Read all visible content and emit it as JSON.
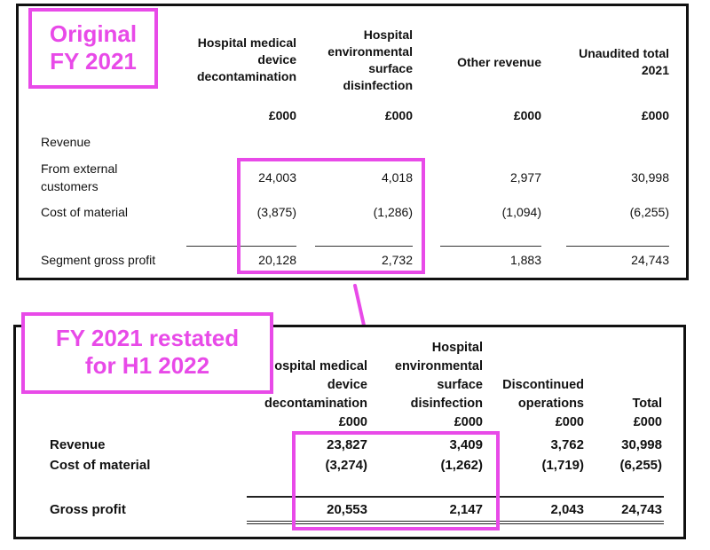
{
  "top": {
    "tag_line1": "Original",
    "tag_line2": "FY 2021",
    "headers": {
      "hmdd": [
        "Hospital medical",
        "device",
        "decontamination"
      ],
      "hesd": [
        "Hospital",
        "environmental",
        "surface",
        "disinfection"
      ],
      "other": "Other revenue",
      "total": [
        "Unaudited total",
        "2021"
      ]
    },
    "units": [
      "£000",
      "£000",
      "£000",
      "£000"
    ],
    "rows": [
      {
        "label": "Revenue",
        "values": [
          "",
          "",
          "",
          ""
        ]
      },
      {
        "label_lines": [
          "From external",
          "customers"
        ],
        "values": [
          "24,003",
          "4,018",
          "2,977",
          "30,998"
        ]
      },
      {
        "label": "Cost of material",
        "values": [
          "(3,875)",
          "(1,286)",
          "(1,094)",
          "(6,255)"
        ]
      },
      {
        "label": "Segment gross profit",
        "values": [
          "20,128",
          "2,732",
          "1,883",
          "24,743"
        ]
      }
    ]
  },
  "bottom": {
    "tag_line1": "FY 2021 restated",
    "tag_line2": "for H1 2022",
    "headers": {
      "hmdd": [
        "ospital medical",
        "device",
        "decontamination",
        "£000"
      ],
      "hesd": [
        "Hospital",
        "environmental",
        "surface",
        "disinfection",
        "£000"
      ],
      "disc": [
        "Discontinued",
        "operations",
        "£000"
      ],
      "total": [
        "Total",
        "£000"
      ]
    },
    "rows": [
      {
        "label": "Revenue",
        "values": [
          "23,827",
          "3,409",
          "3,762",
          "30,998"
        ]
      },
      {
        "label": "Cost of material",
        "values": [
          "(3,274)",
          "(1,262)",
          "(1,719)",
          "(6,255)"
        ]
      },
      {
        "label": "Gross profit",
        "values": [
          "20,553",
          "2,147",
          "2,043",
          "24,743"
        ]
      }
    ]
  },
  "colors": {
    "accent": "#e84ae8",
    "border": "#111111"
  }
}
